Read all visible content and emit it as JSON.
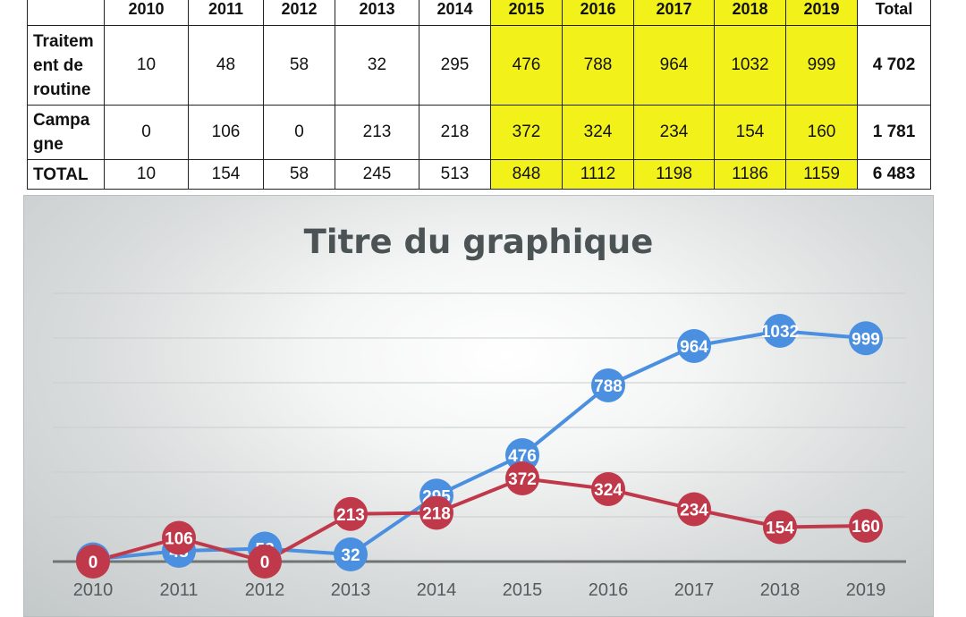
{
  "table": {
    "headers": [
      "",
      "2010",
      "2011",
      "2012",
      "2013",
      "2014",
      "2015",
      "2016",
      "2017",
      "2018",
      "2019",
      "Total"
    ],
    "rows": [
      {
        "label_lines": [
          "Traitem",
          "ent de",
          "routine"
        ],
        "values": [
          "10",
          "48",
          "58",
          "32",
          "295",
          "476",
          "788",
          "964",
          "1032",
          "999"
        ],
        "total": "4 702"
      },
      {
        "label_lines": [
          "Campa",
          "gne"
        ],
        "values": [
          "0",
          "106",
          "0",
          "213",
          "218",
          "372",
          "324",
          "234",
          "154",
          "160"
        ],
        "total": "1 781"
      },
      {
        "label_lines": [
          "TOTAL"
        ],
        "values": [
          "10",
          "154",
          "58",
          "245",
          "513",
          "848",
          "1112",
          "1198",
          "1186",
          "1159"
        ],
        "total": "6 483"
      }
    ],
    "highlight_color": "#f2f21a"
  },
  "chart_data": {
    "type": "line",
    "title": "Titre du graphique",
    "x": [
      "2010",
      "2011",
      "2012",
      "2013",
      "2014",
      "2015",
      "2016",
      "2017",
      "2018",
      "2019"
    ],
    "series": [
      {
        "values": [
          10,
          48,
          58,
          32,
          295,
          476,
          788,
          964,
          1032,
          999
        ],
        "color": "#4a8fe0"
      },
      {
        "values": [
          0,
          106,
          0,
          213,
          218,
          372,
          324,
          234,
          154,
          160
        ],
        "color": "#c0394b"
      }
    ],
    "ylim": [
      0,
      1200
    ],
    "grid": true,
    "legend": false
  }
}
